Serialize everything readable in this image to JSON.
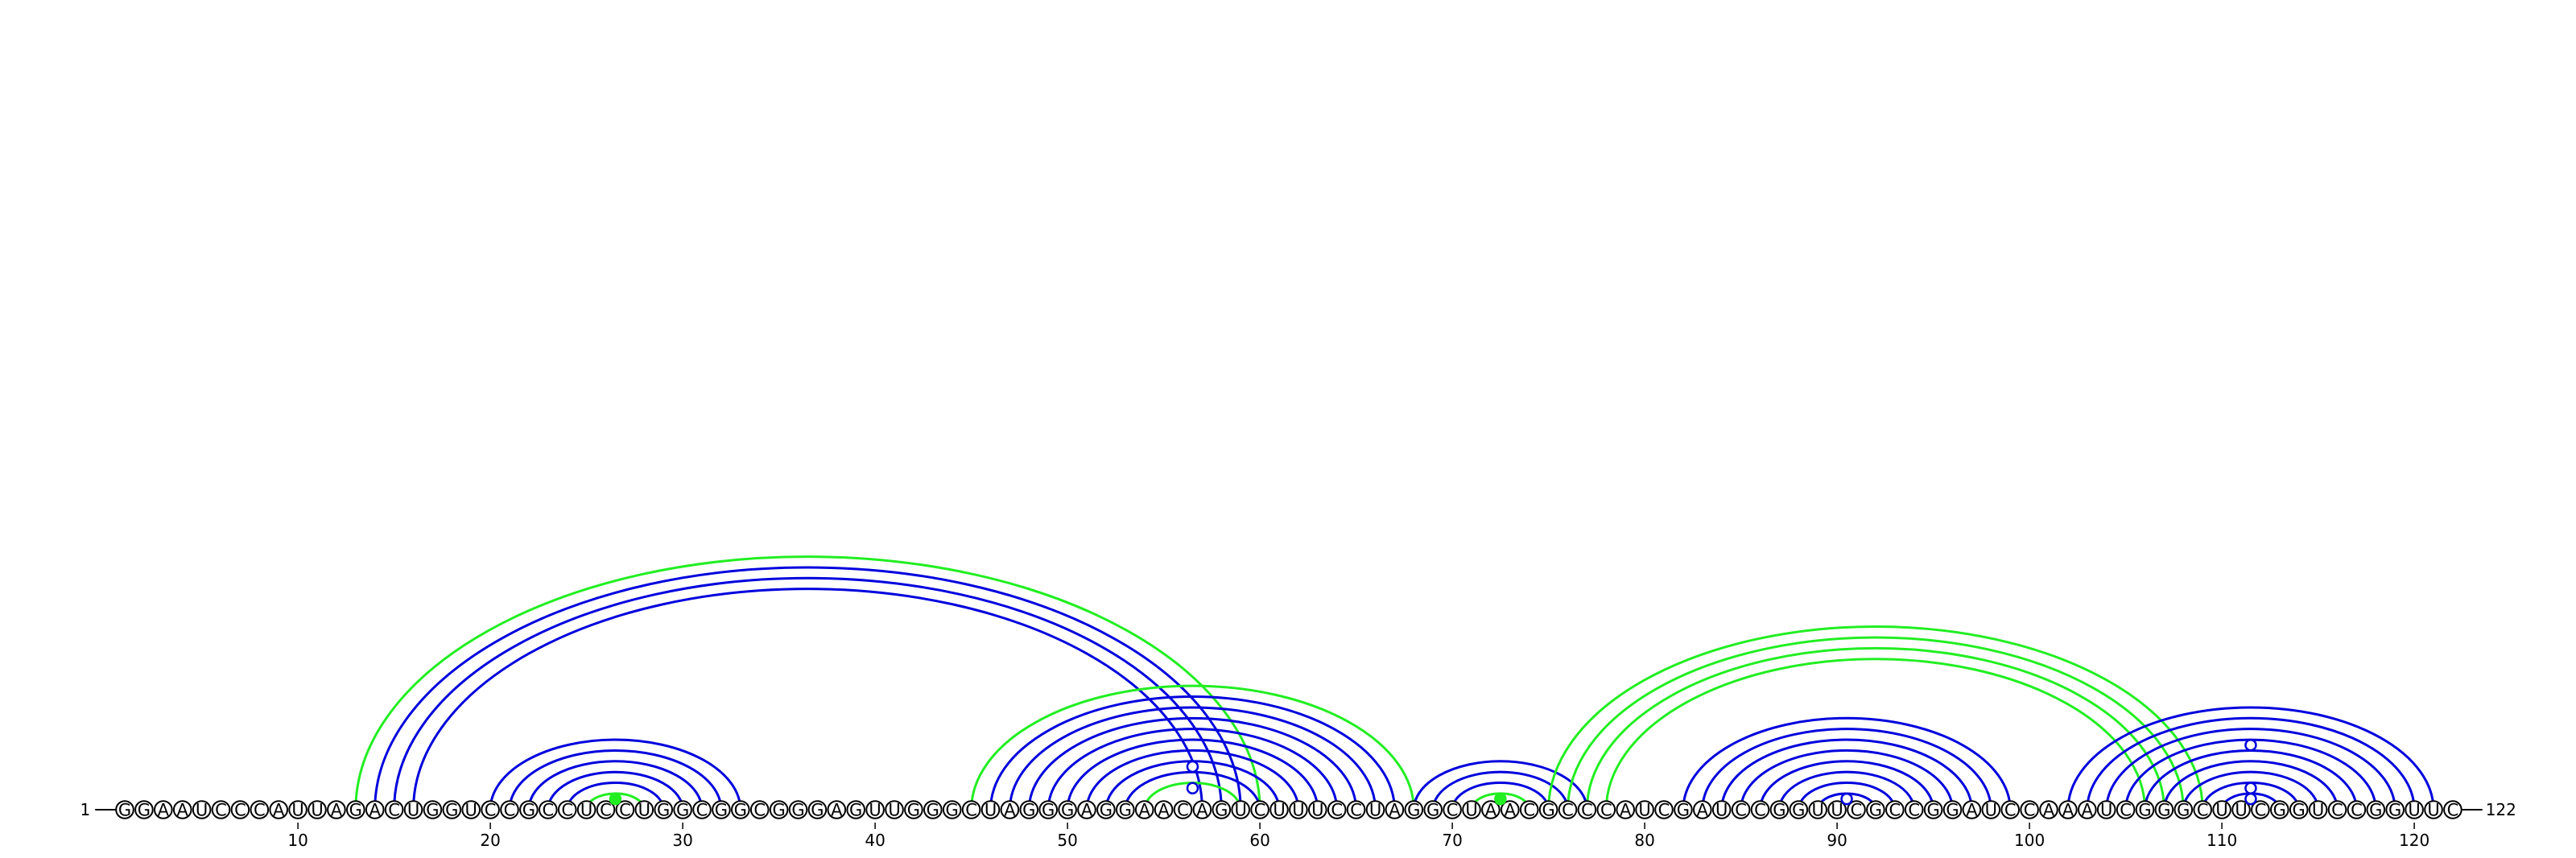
{
  "chart_data": {
    "type": "arc_diagram",
    "sequence": "GGAAUCCCAUUAGACUGGUCCGCCUCCUGGCGGCGGGAGUUGGGCUAGGGAGGAACAGUCUUUCCUAGGCUAACGCCCAUCGAUCCGGUUCGCCGGAUCCAAAUCGGGCUUCGGUCCGGUUC",
    "length": 122,
    "start_label": "1",
    "end_label": "122",
    "ticks": [
      10,
      20,
      30,
      40,
      50,
      60,
      70,
      80,
      90,
      100,
      110,
      120
    ],
    "colors": {
      "blue": "#0000dd",
      "green": "#22ee22",
      "text": "#000000"
    },
    "arcs": [
      {
        "i": 13,
        "j": 60,
        "color": "green"
      },
      {
        "i": 14,
        "j": 59,
        "color": "blue"
      },
      {
        "i": 15,
        "j": 58,
        "color": "blue"
      },
      {
        "i": 16,
        "j": 57,
        "color": "blue"
      },
      {
        "i": 20,
        "j": 33,
        "color": "blue"
      },
      {
        "i": 21,
        "j": 32,
        "color": "blue"
      },
      {
        "i": 22,
        "j": 31,
        "color": "blue"
      },
      {
        "i": 23,
        "j": 30,
        "color": "blue"
      },
      {
        "i": 24,
        "j": 29,
        "color": "blue"
      },
      {
        "i": 25,
        "j": 28,
        "color": "green"
      },
      {
        "i": 45,
        "j": 68,
        "color": "green"
      },
      {
        "i": 46,
        "j": 67,
        "color": "blue"
      },
      {
        "i": 47,
        "j": 66,
        "color": "blue"
      },
      {
        "i": 48,
        "j": 65,
        "color": "blue"
      },
      {
        "i": 49,
        "j": 64,
        "color": "blue"
      },
      {
        "i": 50,
        "j": 63,
        "color": "blue"
      },
      {
        "i": 51,
        "j": 62,
        "color": "blue"
      },
      {
        "i": 52,
        "j": 61,
        "color": "blue"
      },
      {
        "i": 53,
        "j": 60,
        "color": "blue"
      },
      {
        "i": 54,
        "j": 59,
        "color": "green"
      },
      {
        "i": 68,
        "j": 77,
        "color": "blue"
      },
      {
        "i": 69,
        "j": 76,
        "color": "blue"
      },
      {
        "i": 70,
        "j": 75,
        "color": "blue"
      },
      {
        "i": 71,
        "j": 74,
        "color": "green"
      },
      {
        "i": 75,
        "j": 109,
        "color": "green"
      },
      {
        "i": 76,
        "j": 108,
        "color": "green"
      },
      {
        "i": 77,
        "j": 107,
        "color": "green"
      },
      {
        "i": 78,
        "j": 106,
        "color": "green"
      },
      {
        "i": 82,
        "j": 99,
        "color": "blue"
      },
      {
        "i": 83,
        "j": 98,
        "color": "blue"
      },
      {
        "i": 84,
        "j": 97,
        "color": "blue"
      },
      {
        "i": 85,
        "j": 96,
        "color": "blue"
      },
      {
        "i": 86,
        "j": 95,
        "color": "blue"
      },
      {
        "i": 87,
        "j": 94,
        "color": "blue"
      },
      {
        "i": 88,
        "j": 93,
        "color": "blue"
      },
      {
        "i": 89,
        "j": 92,
        "color": "blue"
      },
      {
        "i": 102,
        "j": 121,
        "color": "blue"
      },
      {
        "i": 103,
        "j": 120,
        "color": "blue"
      },
      {
        "i": 104,
        "j": 119,
        "color": "blue"
      },
      {
        "i": 105,
        "j": 118,
        "color": "blue"
      },
      {
        "i": 106,
        "j": 117,
        "color": "blue"
      },
      {
        "i": 107,
        "j": 116,
        "color": "blue"
      },
      {
        "i": 108,
        "j": 115,
        "color": "blue"
      },
      {
        "i": 109,
        "j": 114,
        "color": "blue"
      },
      {
        "i": 110,
        "j": 113,
        "color": "blue"
      }
    ],
    "markers": [
      {
        "pos": 26.5,
        "height": 0.5,
        "filled": true,
        "color": "green"
      },
      {
        "pos": 72.5,
        "height": 0.5,
        "filled": true,
        "color": "green"
      },
      {
        "pos": 56.5,
        "height": 1.0,
        "filled": false,
        "color": "blue"
      },
      {
        "pos": 56.5,
        "height": 2.0,
        "filled": false,
        "color": "blue"
      },
      {
        "pos": 90.5,
        "height": 0.5,
        "filled": false,
        "color": "blue"
      },
      {
        "pos": 111.5,
        "height": 0.5,
        "filled": false,
        "color": "blue"
      },
      {
        "pos": 111.5,
        "height": 1.0,
        "filled": false,
        "color": "blue"
      },
      {
        "pos": 111.5,
        "height": 3.0,
        "filled": false,
        "color": "blue"
      }
    ]
  }
}
